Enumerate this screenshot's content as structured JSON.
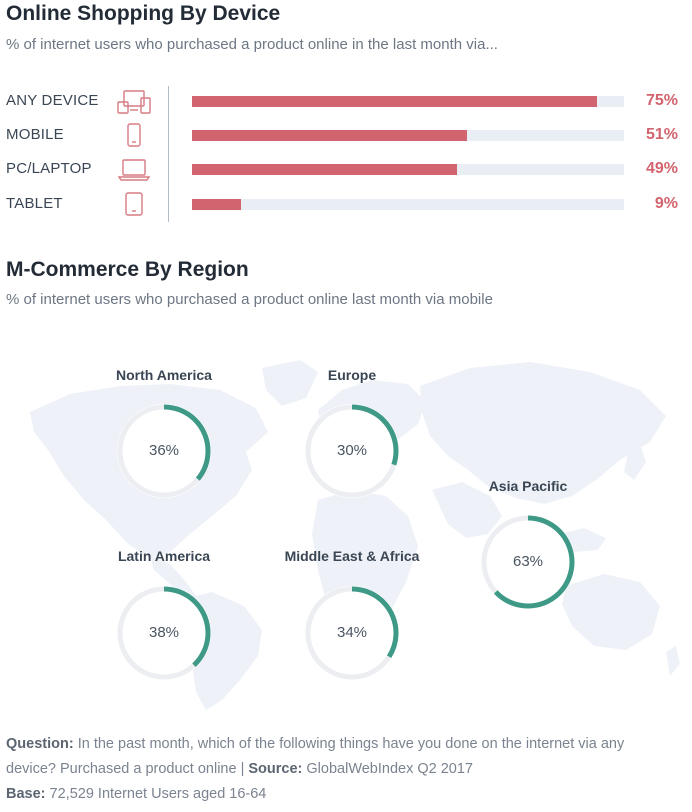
{
  "section1": {
    "title": "Online Shopping By Device",
    "subtitle": "% of internet users who purchased a product online in the last month via..."
  },
  "section2": {
    "title": "M-Commerce By Region",
    "subtitle": "% of internet users who purchased a product online last month via mobile"
  },
  "colors": {
    "bar": "#d1646e",
    "track": "#e9edf4",
    "donut": "#3e9a86",
    "donut_track": "#eceef1",
    "map": "#eef1f7"
  },
  "chart_data": [
    {
      "type": "bar",
      "orientation": "horizontal",
      "categories": [
        "ANY DEVICE",
        "MOBILE",
        "PC/LAPTOP",
        "TABLET"
      ],
      "icons": [
        "devices-icon",
        "mobile-icon",
        "laptop-icon",
        "tablet-icon"
      ],
      "values": [
        75,
        51,
        49,
        9
      ],
      "value_labels": [
        "75%",
        "51%",
        "49%",
        "9%"
      ],
      "xlim": [
        0,
        100
      ]
    },
    {
      "type": "pie",
      "style": "donut",
      "categories": [
        "North America",
        "Europe",
        "Asia Pacific",
        "Latin America",
        "Middle East & Africa"
      ],
      "values": [
        36,
        30,
        63,
        38,
        34
      ],
      "value_labels": [
        "36%",
        "30%",
        "63%",
        "38%",
        "34%"
      ]
    }
  ],
  "footer": {
    "question_label": "Question:",
    "question_text": "In the past month, which of the following things have you done on the internet via any device? Purchased a product online |",
    "source_label": "Source:",
    "source_text": "GlobalWebIndex Q2 2017",
    "base_label": "Base:",
    "base_text": "72,529 Internet Users aged 16-64"
  }
}
